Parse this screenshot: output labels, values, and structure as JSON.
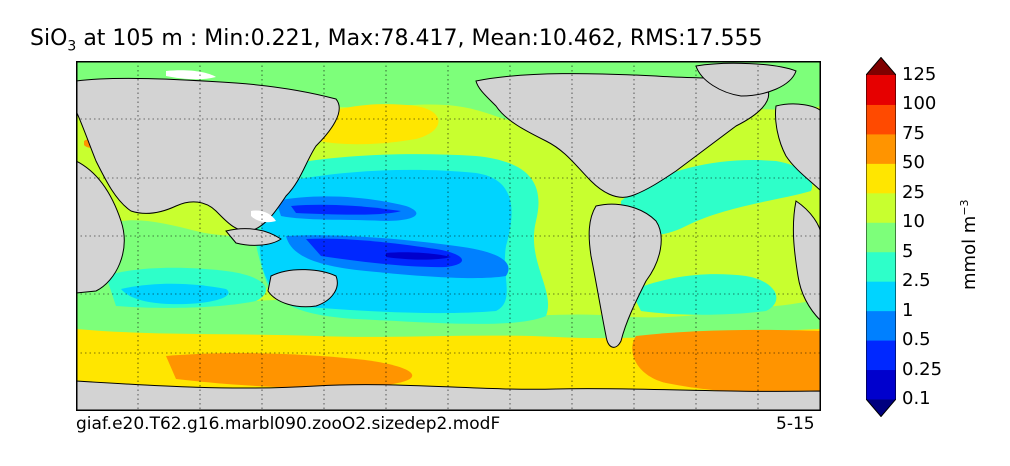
{
  "title": {
    "prefix": "SiO",
    "subscript": "3",
    "rest": " at 105 m : Min:0.221, Max:78.417, Mean:10.462, RMS:17.555"
  },
  "footer": {
    "case_name": "giaf.e20.T62.g16.marbl090.zooO2.sizedep2.modF",
    "years": "5-15"
  },
  "colorbar": {
    "unit_text": "mmol m",
    "unit_exponent": "−3",
    "levels": [
      "0.1",
      "0.25",
      "0.5",
      "1",
      "2.5",
      "5",
      "10",
      "25",
      "50",
      "75",
      "100",
      "125"
    ],
    "colors": [
      "#00007f",
      "#0000cd",
      "#0028ff",
      "#0080ff",
      "#00d4ff",
      "#2effc9",
      "#7dff7a",
      "#c8ff2f",
      "#ffe600",
      "#ff9400",
      "#ff4a00",
      "#e60000",
      "#7f0000"
    ]
  },
  "map_colors": {
    "land": "#d3d3d3",
    "missing": "#ffffff",
    "frame": "#000000"
  }
}
